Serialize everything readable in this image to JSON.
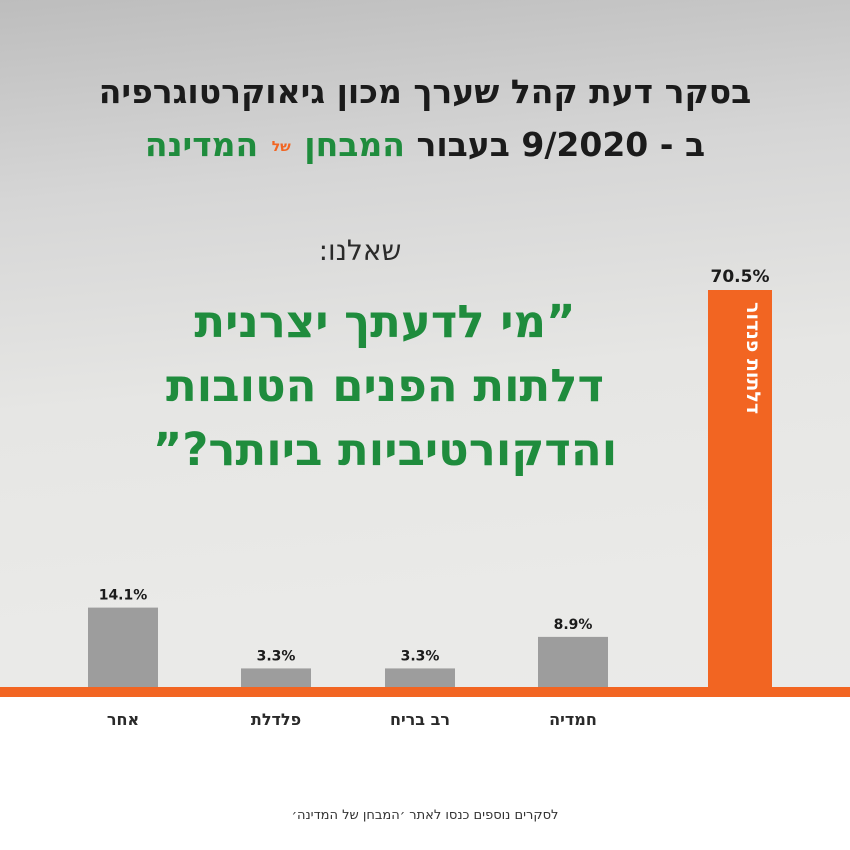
{
  "header": {
    "line1": "בסקר דעת קהל שערך מכון גיאוקרטוגרפיה",
    "line2_prefix": "ב - 9/2020 בעבור",
    "brand_main": "המבחן",
    "brand_small": "של",
    "brand_end": "המדינה"
  },
  "question": {
    "asked_label": "שאלנו:",
    "line1": "”מי לדעתך יצרנית",
    "line2": "דלתות הפנים הטובות",
    "line3": "והדקורטיביות ביותר?”"
  },
  "footer": {
    "text": "לסקרים נוספים כנסו לאתר ׳המבחן של המדינה׳"
  },
  "colors": {
    "bar_gray": "#9d9d9d",
    "bar_highlight": "#f26522",
    "baseline": "#f26522",
    "brand_green": "#1f8c3d"
  },
  "chart_data": {
    "type": "bar",
    "categories": [
      "אחר",
      "פלדלת",
      "רב בריח",
      "חמדיה",
      "דלתות פנדור"
    ],
    "values": [
      14.1,
      3.3,
      3.3,
      8.9,
      70.5
    ],
    "value_labels": [
      "14.1%",
      "3.3%",
      "3.3%",
      "8.9%",
      "70.5%"
    ],
    "highlight_index": 4,
    "highlight_inbar_label": "דלתות פנדור",
    "ylim": [
      0,
      70.5
    ],
    "grid": false,
    "legend": "none"
  }
}
